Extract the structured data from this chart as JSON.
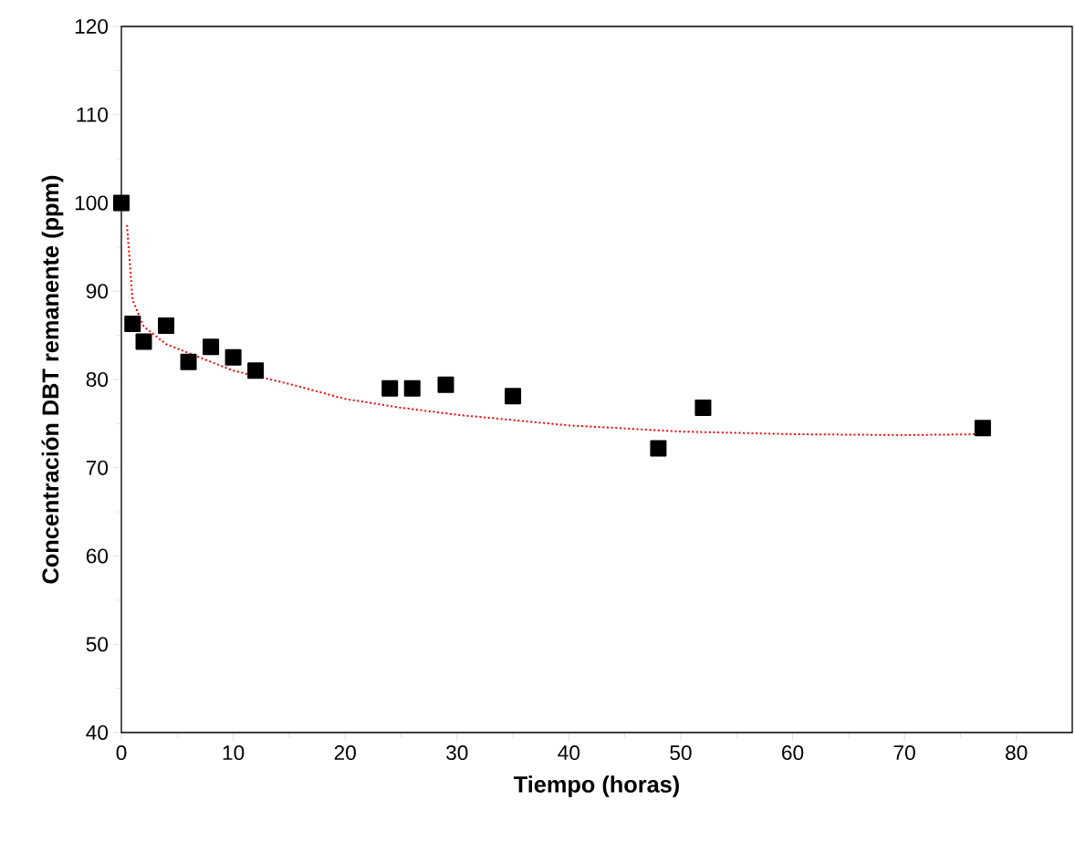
{
  "chart_data": {
    "type": "scatter",
    "xlabel": "Tiempo (horas)",
    "ylabel": "Concentración DBT remanente (ppm)",
    "xlim": [
      0,
      85
    ],
    "ylim": [
      40,
      120
    ],
    "xticks": [
      0,
      10,
      20,
      30,
      40,
      50,
      60,
      70,
      80
    ],
    "yticks": [
      40,
      50,
      60,
      70,
      80,
      90,
      100,
      110,
      120
    ],
    "series": [
      {
        "color": "#000000",
        "marker": "square",
        "x": [
          0,
          1,
          2,
          4,
          6,
          8,
          10,
          12,
          24,
          26,
          29,
          35,
          48,
          52,
          77
        ],
        "values": [
          100,
          86.3,
          84.3,
          86.1,
          82,
          83.7,
          82.5,
          81,
          79,
          79,
          79.4,
          78.1,
          72.2,
          76.8,
          74.5
        ]
      },
      {
        "type": "line",
        "color": "#ff0000",
        "line_style": "dotted",
        "marker": "none",
        "x": [
          0.5,
          1,
          2,
          4,
          6,
          8,
          10,
          15,
          20,
          25,
          30,
          40,
          50,
          60,
          70,
          77
        ],
        "values": [
          97.5,
          89,
          86,
          84,
          83,
          82,
          81,
          79.5,
          77.8,
          76.8,
          76,
          74.8,
          74.1,
          73.8,
          73.7,
          73.8
        ]
      }
    ]
  }
}
